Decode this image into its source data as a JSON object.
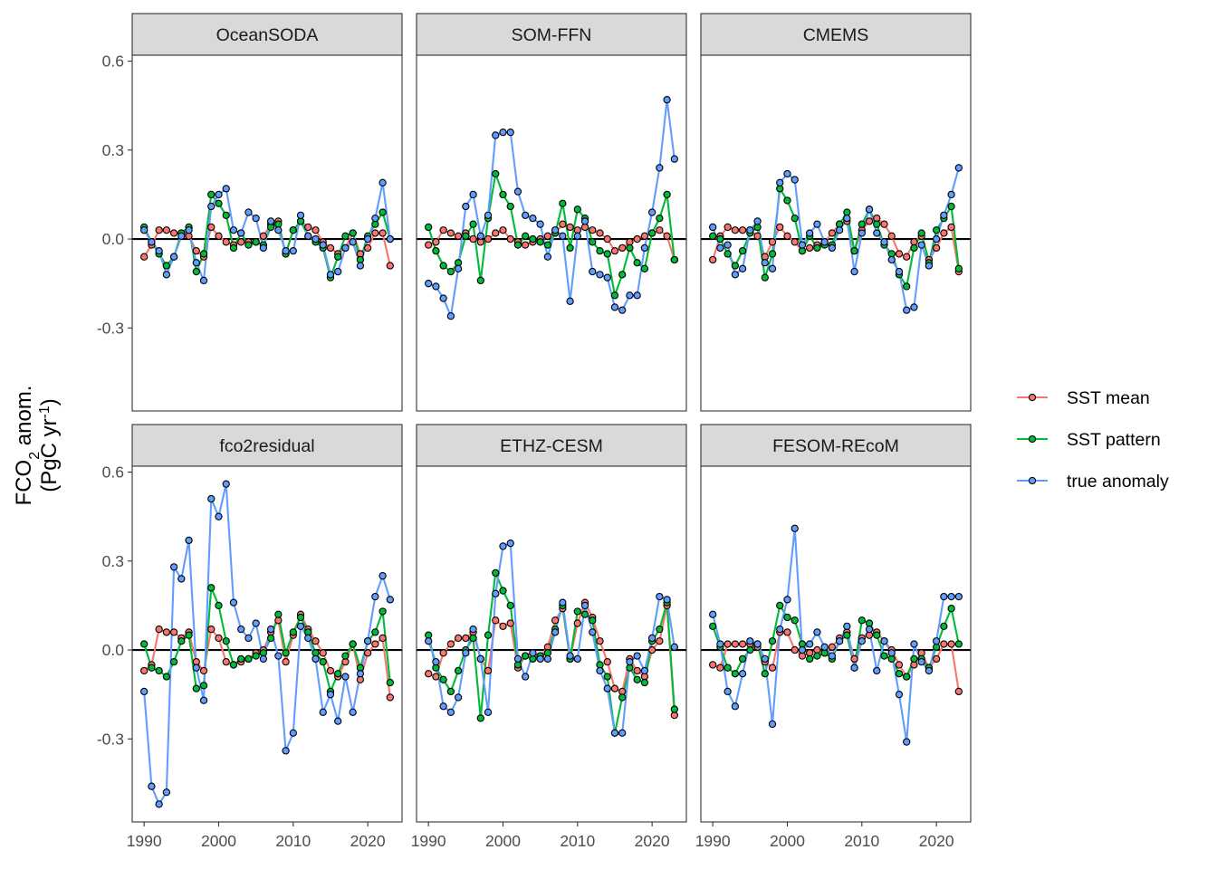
{
  "y_axis_title": {
    "line1_main": "FCO",
    "line1_sub": "2",
    "line1_rest": " anom.",
    "line2_main": "(PgC yr",
    "line2_sup": "-1",
    "line2_rest": ")"
  },
  "legend": [
    {
      "label": "SST mean",
      "color": "#F8766D"
    },
    {
      "label": "SST pattern",
      "color": "#00BA38"
    },
    {
      "label": "true anomaly",
      "color": "#619CFF"
    }
  ],
  "chart_data": [
    {
      "type": "line",
      "panel": "OceanSODA",
      "x": [
        1990,
        1991,
        1992,
        1993,
        1994,
        1995,
        1996,
        1997,
        1998,
        1999,
        2000,
        2001,
        2002,
        2003,
        2004,
        2005,
        2006,
        2007,
        2008,
        2009,
        2010,
        2011,
        2012,
        2013,
        2014,
        2015,
        2016,
        2017,
        2018,
        2019,
        2020,
        2021,
        2022,
        2023
      ],
      "series": [
        {
          "name": "SST mean",
          "values": [
            -0.06,
            -0.02,
            0.03,
            0.03,
            0.02,
            0.02,
            0.01,
            -0.04,
            -0.06,
            0.04,
            0.01,
            -0.01,
            -0.02,
            -0.01,
            -0.01,
            -0.01,
            0.01,
            0.05,
            0.06,
            -0.05,
            0.03,
            0.06,
            0.04,
            0.03,
            -0.01,
            -0.03,
            -0.05,
            -0.03,
            0.02,
            -0.05,
            -0.03,
            0.02,
            0.02,
            -0.09
          ]
        },
        {
          "name": "SST pattern",
          "values": [
            0.04,
            -0.01,
            -0.05,
            -0.09,
            -0.06,
            0.02,
            0.04,
            -0.11,
            -0.05,
            0.15,
            0.12,
            0.08,
            -0.03,
            0.02,
            -0.02,
            -0.01,
            -0.02,
            0.04,
            0.05,
            -0.05,
            0.03,
            0.06,
            0.01,
            -0.01,
            -0.03,
            -0.13,
            -0.06,
            0.01,
            0.02,
            -0.07,
            0.01,
            0.05,
            0.09,
            0.0
          ]
        },
        {
          "name": "true anomaly",
          "values": [
            0.03,
            -0.01,
            -0.04,
            -0.12,
            -0.06,
            0.01,
            0.03,
            -0.08,
            -0.14,
            0.11,
            0.15,
            0.17,
            0.03,
            0.02,
            0.09,
            0.07,
            -0.03,
            0.06,
            0.03,
            -0.04,
            -0.04,
            0.08,
            0.01,
            0.0,
            -0.02,
            -0.12,
            -0.11,
            -0.03,
            -0.01,
            -0.09,
            0.0,
            0.07,
            0.19,
            0.0
          ]
        }
      ]
    },
    {
      "type": "line",
      "panel": "SOM-FFN",
      "x": [
        1990,
        1991,
        1992,
        1993,
        1994,
        1995,
        1996,
        1997,
        1998,
        1999,
        2000,
        2001,
        2002,
        2003,
        2004,
        2005,
        2006,
        2007,
        2008,
        2009,
        2010,
        2011,
        2012,
        2013,
        2014,
        2015,
        2016,
        2017,
        2018,
        2019,
        2020,
        2021,
        2022,
        2023
      ],
      "series": [
        {
          "name": "SST mean",
          "values": [
            -0.02,
            -0.01,
            0.03,
            0.02,
            0.01,
            0.02,
            0.0,
            -0.01,
            0.0,
            0.02,
            0.03,
            0.0,
            -0.01,
            -0.02,
            -0.01,
            0.0,
            0.01,
            0.02,
            0.05,
            0.04,
            0.03,
            0.04,
            0.03,
            0.02,
            0.0,
            -0.04,
            -0.03,
            -0.01,
            0.0,
            0.01,
            0.02,
            0.03,
            0.01,
            -0.07
          ]
        },
        {
          "name": "SST pattern",
          "values": [
            0.04,
            -0.04,
            -0.09,
            -0.11,
            -0.08,
            0.01,
            0.05,
            -0.14,
            0.07,
            0.22,
            0.15,
            0.11,
            -0.02,
            0.01,
            0.0,
            -0.01,
            -0.02,
            0.02,
            0.12,
            -0.03,
            0.1,
            0.07,
            -0.01,
            -0.04,
            -0.05,
            -0.19,
            -0.12,
            -0.03,
            -0.08,
            -0.1,
            0.02,
            0.07,
            0.15,
            -0.07
          ]
        },
        {
          "name": "true anomaly",
          "values": [
            -0.15,
            -0.16,
            -0.2,
            -0.26,
            -0.1,
            0.11,
            0.15,
            0.01,
            0.08,
            0.35,
            0.36,
            0.36,
            0.16,
            0.08,
            0.07,
            0.05,
            -0.06,
            0.03,
            0.01,
            -0.21,
            0.01,
            0.06,
            -0.11,
            -0.12,
            -0.13,
            -0.23,
            -0.24,
            -0.19,
            -0.19,
            -0.03,
            0.09,
            0.24,
            0.47,
            0.27
          ]
        }
      ]
    },
    {
      "type": "line",
      "panel": "CMEMS",
      "x": [
        1990,
        1991,
        1992,
        1993,
        1994,
        1995,
        1996,
        1997,
        1998,
        1999,
        2000,
        2001,
        2002,
        2003,
        2004,
        2005,
        2006,
        2007,
        2008,
        2009,
        2010,
        2011,
        2012,
        2013,
        2014,
        2015,
        2016,
        2017,
        2018,
        2019,
        2020,
        2021,
        2022,
        2023
      ],
      "series": [
        {
          "name": "SST mean",
          "values": [
            -0.07,
            0.01,
            0.04,
            0.03,
            0.03,
            0.03,
            0.01,
            -0.06,
            -0.01,
            0.04,
            0.01,
            -0.01,
            -0.04,
            -0.03,
            -0.02,
            -0.01,
            0.02,
            0.05,
            0.06,
            -0.04,
            0.03,
            0.06,
            0.07,
            0.05,
            0.01,
            -0.05,
            -0.06,
            -0.01,
            0.01,
            -0.07,
            -0.03,
            0.02,
            0.04,
            -0.11
          ]
        },
        {
          "name": "SST pattern",
          "values": [
            0.01,
            0.0,
            -0.05,
            -0.09,
            -0.04,
            0.02,
            0.04,
            -0.13,
            -0.05,
            0.17,
            0.13,
            0.07,
            -0.04,
            0.01,
            -0.03,
            -0.02,
            -0.02,
            0.05,
            0.09,
            -0.04,
            0.05,
            0.1,
            0.05,
            -0.02,
            -0.05,
            -0.12,
            -0.16,
            -0.03,
            0.02,
            -0.08,
            0.03,
            0.07,
            0.11,
            -0.1
          ]
        },
        {
          "name": "true anomaly",
          "values": [
            0.04,
            -0.03,
            -0.02,
            -0.12,
            -0.1,
            0.03,
            0.06,
            -0.08,
            -0.1,
            0.19,
            0.22,
            0.2,
            -0.02,
            0.02,
            0.05,
            -0.01,
            -0.03,
            0.03,
            0.07,
            -0.11,
            0.02,
            0.1,
            0.02,
            -0.01,
            -0.07,
            -0.11,
            -0.24,
            -0.23,
            -0.02,
            -0.09,
            0.0,
            0.08,
            0.15,
            0.24
          ]
        }
      ]
    },
    {
      "type": "line",
      "panel": "fco2residual",
      "x": [
        1990,
        1991,
        1992,
        1993,
        1994,
        1995,
        1996,
        1997,
        1998,
        1999,
        2000,
        2001,
        2002,
        2003,
        2004,
        2005,
        2006,
        2007,
        2008,
        2009,
        2010,
        2011,
        2012,
        2013,
        2014,
        2015,
        2016,
        2017,
        2018,
        2019,
        2020,
        2021,
        2022,
        2023
      ],
      "series": [
        {
          "name": "SST mean",
          "values": [
            -0.07,
            -0.05,
            0.07,
            0.06,
            0.06,
            0.04,
            0.06,
            -0.04,
            -0.07,
            0.07,
            0.04,
            -0.04,
            -0.05,
            -0.04,
            -0.03,
            -0.01,
            0.0,
            0.06,
            0.1,
            -0.04,
            0.05,
            0.12,
            0.07,
            0.03,
            -0.01,
            -0.07,
            -0.09,
            -0.04,
            0.02,
            -0.1,
            -0.01,
            0.02,
            0.04,
            -0.16
          ]
        },
        {
          "name": "SST pattern",
          "values": [
            0.02,
            -0.06,
            -0.07,
            -0.09,
            -0.04,
            0.03,
            0.05,
            -0.13,
            -0.12,
            0.21,
            0.15,
            0.03,
            -0.05,
            -0.03,
            -0.03,
            -0.02,
            -0.01,
            0.04,
            0.12,
            -0.01,
            0.06,
            0.11,
            0.06,
            -0.01,
            -0.04,
            -0.14,
            -0.08,
            -0.02,
            0.02,
            -0.06,
            0.03,
            0.06,
            0.13,
            -0.11
          ]
        },
        {
          "name": "true anomaly",
          "values": [
            -0.14,
            -0.46,
            -0.52,
            -0.48,
            0.28,
            0.24,
            0.37,
            -0.06,
            -0.17,
            0.51,
            0.45,
            0.56,
            0.16,
            0.07,
            0.04,
            0.09,
            -0.03,
            0.07,
            -0.02,
            -0.34,
            -0.28,
            0.08,
            0.04,
            -0.03,
            -0.21,
            -0.15,
            -0.24,
            -0.09,
            -0.21,
            -0.08,
            0.03,
            0.18,
            0.25,
            0.17
          ]
        }
      ]
    },
    {
      "type": "line",
      "panel": "ETHZ-CESM",
      "x": [
        1990,
        1991,
        1992,
        1993,
        1994,
        1995,
        1996,
        1997,
        1998,
        1999,
        2000,
        2001,
        2002,
        2003,
        2004,
        2005,
        2006,
        2007,
        2008,
        2009,
        2010,
        2011,
        2012,
        2013,
        2014,
        2015,
        2016,
        2017,
        2018,
        2019,
        2020,
        2021,
        2022,
        2023
      ],
      "series": [
        {
          "name": "SST mean",
          "values": [
            -0.08,
            -0.09,
            -0.01,
            0.02,
            0.04,
            0.04,
            0.06,
            -0.03,
            -0.07,
            0.1,
            0.08,
            0.09,
            -0.06,
            -0.02,
            -0.01,
            -0.02,
            0.01,
            0.1,
            0.14,
            -0.03,
            0.09,
            0.16,
            0.11,
            0.03,
            -0.04,
            -0.13,
            -0.14,
            -0.03,
            -0.07,
            -0.09,
            0.0,
            0.03,
            0.15,
            -0.22
          ]
        },
        {
          "name": "SST pattern",
          "values": [
            0.05,
            -0.06,
            -0.1,
            -0.14,
            -0.07,
            0.0,
            0.04,
            -0.23,
            0.05,
            0.26,
            0.2,
            0.15,
            -0.05,
            -0.02,
            -0.03,
            -0.02,
            -0.01,
            0.07,
            0.15,
            -0.03,
            0.13,
            0.12,
            0.1,
            -0.05,
            -0.09,
            -0.28,
            -0.16,
            -0.06,
            -0.1,
            -0.11,
            0.03,
            0.07,
            0.16,
            -0.2
          ]
        },
        {
          "name": "true anomaly",
          "values": [
            0.03,
            -0.04,
            -0.19,
            -0.21,
            -0.16,
            -0.01,
            0.07,
            -0.03,
            -0.21,
            0.19,
            0.35,
            0.36,
            -0.03,
            -0.09,
            -0.01,
            -0.03,
            -0.03,
            0.06,
            0.16,
            -0.02,
            -0.03,
            0.15,
            0.06,
            -0.07,
            -0.13,
            -0.28,
            -0.28,
            -0.04,
            -0.02,
            -0.07,
            0.04,
            0.18,
            0.17,
            0.01
          ]
        }
      ]
    },
    {
      "type": "line",
      "panel": "FESOM-REcoM",
      "x": [
        1990,
        1991,
        1992,
        1993,
        1994,
        1995,
        1996,
        1997,
        1998,
        1999,
        2000,
        2001,
        2002,
        2003,
        2004,
        2005,
        2006,
        2007,
        2008,
        2009,
        2010,
        2011,
        2012,
        2013,
        2014,
        2015,
        2016,
        2017,
        2018,
        2019,
        2020,
        2021,
        2022,
        2023
      ],
      "series": [
        {
          "name": "SST mean",
          "values": [
            -0.05,
            -0.06,
            0.02,
            0.02,
            0.02,
            0.02,
            0.01,
            -0.04,
            -0.06,
            0.06,
            0.06,
            0.0,
            -0.02,
            -0.01,
            0.0,
            -0.01,
            0.01,
            0.04,
            0.06,
            -0.03,
            0.04,
            0.05,
            0.06,
            0.03,
            0.0,
            -0.05,
            -0.09,
            -0.05,
            -0.01,
            -0.06,
            -0.03,
            0.02,
            0.02,
            -0.14
          ]
        },
        {
          "name": "SST pattern",
          "values": [
            0.08,
            0.01,
            -0.06,
            -0.08,
            -0.03,
            0.0,
            0.02,
            -0.08,
            0.03,
            0.15,
            0.11,
            0.1,
            0.02,
            -0.03,
            -0.02,
            -0.01,
            -0.03,
            0.03,
            0.05,
            -0.06,
            0.1,
            0.09,
            0.05,
            -0.02,
            -0.03,
            -0.08,
            -0.09,
            -0.03,
            -0.03,
            -0.06,
            0.01,
            0.08,
            0.14,
            0.02
          ]
        },
        {
          "name": "true anomaly",
          "values": [
            0.12,
            0.02,
            -0.14,
            -0.19,
            -0.08,
            0.03,
            0.02,
            -0.03,
            -0.25,
            0.07,
            0.17,
            0.41,
            0.0,
            0.02,
            0.06,
            0.01,
            -0.02,
            0.03,
            0.08,
            -0.06,
            0.03,
            0.07,
            -0.07,
            0.03,
            -0.01,
            -0.15,
            -0.31,
            0.02,
            -0.04,
            -0.07,
            0.03,
            0.18,
            0.18,
            0.18
          ]
        }
      ]
    }
  ],
  "axes": {
    "y_ticks": [
      -0.3,
      0.0,
      0.3,
      0.6
    ],
    "y_tick_labels": [
      "-0.3",
      "0.0",
      "0.3",
      "0.6"
    ],
    "ylim": [
      -0.58,
      0.62
    ],
    "x_ticks": [
      1990,
      2000,
      2010,
      2020
    ],
    "x_tick_labels": [
      "1990",
      "2000",
      "2010",
      "2020"
    ],
    "xlim": [
      1988.4,
      2024.6
    ]
  }
}
